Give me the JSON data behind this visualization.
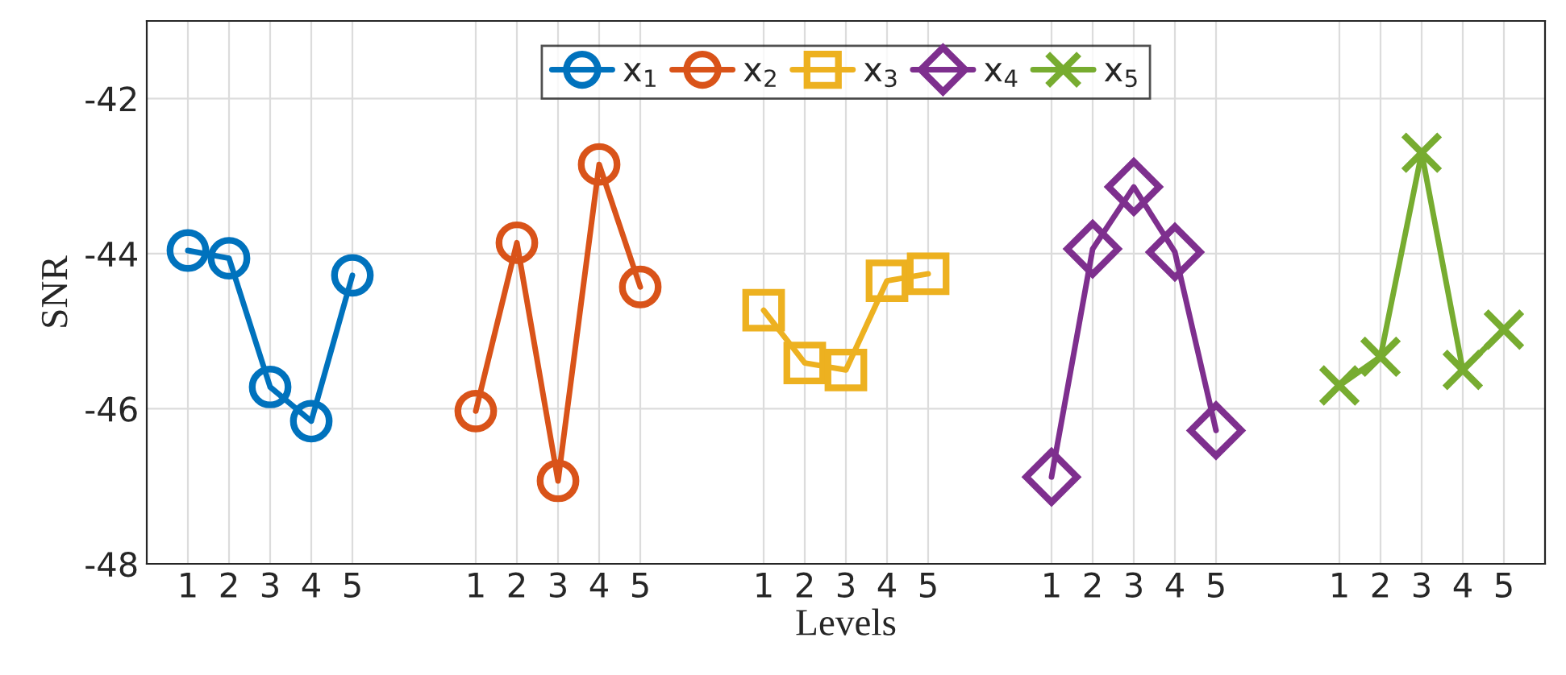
{
  "chart_data": {
    "type": "line",
    "xlabel": "Levels",
    "ylabel": "SNR",
    "categories": [
      null,
      "1",
      "2",
      "3",
      "4",
      "5",
      null,
      null,
      "1",
      "2",
      "3",
      "4",
      "5",
      null,
      null,
      "1",
      "2",
      "3",
      "4",
      "5",
      null,
      null,
      "1",
      "2",
      "3",
      "4",
      "5",
      null,
      null,
      "1",
      "2",
      "3",
      "4",
      "5",
      null
    ],
    "ylim": [
      -48,
      -41
    ],
    "yticks": [
      -48,
      -46,
      -44,
      -42
    ],
    "grid": true,
    "legend": "top",
    "line_style": "solid",
    "series": [
      {
        "name": "x$_{1}$",
        "color": "#0072bd",
        "marker": "circle",
        "values": [
          null,
          -43.96,
          -44.06,
          -45.72,
          -46.16,
          -44.28,
          null,
          null,
          null,
          null,
          null,
          null,
          null,
          null,
          null,
          null,
          null,
          null,
          null,
          null,
          null,
          null,
          null,
          null,
          null,
          null,
          null,
          null,
          null,
          null,
          null,
          null,
          null,
          null,
          null
        ]
      },
      {
        "name": "x$_{2}$",
        "color": "#d95319",
        "marker": "circle",
        "values": [
          null,
          null,
          null,
          null,
          null,
          null,
          null,
          null,
          -46.03,
          -43.86,
          -46.93,
          -42.85,
          -44.43,
          null,
          null,
          null,
          null,
          null,
          null,
          null,
          null,
          null,
          null,
          null,
          null,
          null,
          null,
          null,
          null,
          null,
          null,
          null,
          null,
          null,
          null
        ]
      },
      {
        "name": "x$_{3}$",
        "color": "#edb120",
        "marker": "square",
        "values": [
          null,
          null,
          null,
          null,
          null,
          null,
          null,
          null,
          null,
          null,
          null,
          null,
          null,
          null,
          null,
          -44.73,
          -45.41,
          -45.5,
          -44.35,
          -44.26,
          null,
          null,
          null,
          null,
          null,
          null,
          null,
          null,
          null,
          null,
          null,
          null,
          null,
          null,
          null
        ]
      },
      {
        "name": "x$_{4}$",
        "color": "#7e2f8e",
        "marker": "diamond",
        "values": [
          null,
          null,
          null,
          null,
          null,
          null,
          null,
          null,
          null,
          null,
          null,
          null,
          null,
          null,
          null,
          null,
          null,
          null,
          null,
          null,
          null,
          null,
          -46.88,
          -43.94,
          -43.14,
          -43.98,
          -46.28,
          null,
          null,
          null,
          null,
          null,
          null,
          null,
          null
        ]
      },
      {
        "name": "x$_{5}$",
        "color": "#77ac30",
        "marker": "cross",
        "values": [
          null,
          null,
          null,
          null,
          null,
          null,
          null,
          null,
          null,
          null,
          null,
          null,
          null,
          null,
          null,
          null,
          null,
          null,
          null,
          null,
          null,
          null,
          null,
          null,
          null,
          null,
          null,
          null,
          null,
          -45.7,
          -45.33,
          -42.7,
          -45.5,
          -44.98,
          null
        ]
      }
    ]
  }
}
